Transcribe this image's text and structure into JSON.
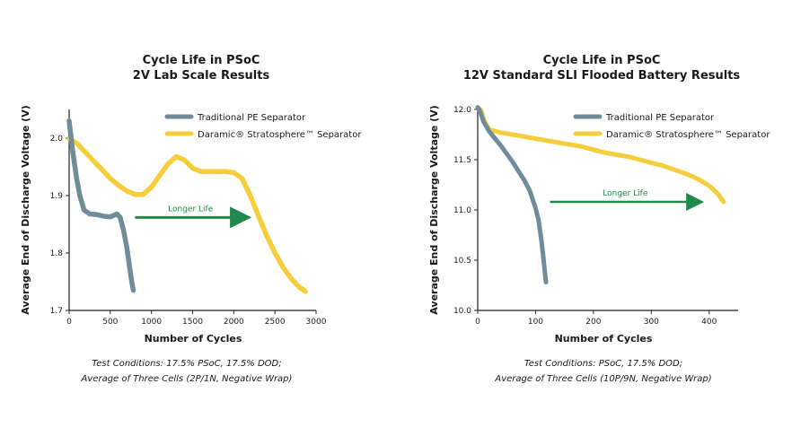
{
  "chart_data": [
    {
      "type": "line",
      "title": [
        "Cycle Life in PSoC",
        "2V Lab Scale Results"
      ],
      "xlabel": "Number of Cycles",
      "ylabel": "Average End of Discharge Voltage (V)",
      "xlim": [
        0,
        3000
      ],
      "ylim": [
        1.7,
        2.05
      ],
      "xticks": [
        0,
        500,
        1000,
        1500,
        2000,
        2500,
        3000
      ],
      "yticks": [
        1.7,
        1.8,
        1.9,
        2.0
      ],
      "ytick_labels": [
        "1.7",
        "1.8",
        "1.9",
        "2.0"
      ],
      "legend_position": "top-right",
      "series": [
        {
          "name": "Traditional PE Separator",
          "color": "#6f8c9b",
          "x": [
            0,
            40,
            90,
            130,
            180,
            250,
            330,
            420,
            500,
            580,
            620,
            660,
            700,
            730,
            760,
            780
          ],
          "y": [
            2.03,
            1.98,
            1.93,
            1.9,
            1.875,
            1.868,
            1.867,
            1.864,
            1.863,
            1.868,
            1.862,
            1.84,
            1.81,
            1.78,
            1.75,
            1.735
          ]
        },
        {
          "name": "Daramic® Stratosphere™ Separator",
          "color": "#f6cd3a",
          "x": [
            0,
            100,
            200,
            300,
            400,
            500,
            600,
            700,
            800,
            900,
            1000,
            1100,
            1200,
            1300,
            1400,
            1500,
            1600,
            1700,
            1800,
            1900,
            2000,
            2100,
            2200,
            2300,
            2400,
            2500,
            2600,
            2700,
            2800,
            2870
          ],
          "y": [
            2.0,
            1.99,
            1.975,
            1.96,
            1.945,
            1.93,
            1.918,
            1.908,
            1.902,
            1.902,
            1.915,
            1.935,
            1.955,
            1.968,
            1.962,
            1.948,
            1.942,
            1.942,
            1.942,
            1.942,
            1.94,
            1.93,
            1.9,
            1.865,
            1.83,
            1.8,
            1.775,
            1.755,
            1.74,
            1.733
          ]
        }
      ],
      "annotation": {
        "text": "Longer Life",
        "x_start": 800,
        "x_end": 2150,
        "y": 1.862,
        "color": "#1f8a4c"
      },
      "note": [
        "Test Conditions: 17.5% PSoC, 17.5% DOD;",
        "Average of Three Cells (2P/1N, Negative Wrap)"
      ]
    },
    {
      "type": "line",
      "title": [
        "Cycle Life in PSoC",
        "12V Standard SLI Flooded Battery Results"
      ],
      "xlabel": "Number of Cycles",
      "ylabel": "Average End of Discharge Voltage (V)",
      "xlim": [
        0,
        450
      ],
      "ylim": [
        10.0,
        12.0
      ],
      "xticks": [
        0,
        100,
        200,
        300,
        400
      ],
      "yticks": [
        10.0,
        10.5,
        11.0,
        11.5,
        12.0
      ],
      "ytick_labels": [
        "10.0",
        "10.5",
        "11.0",
        "11.5",
        "12.0"
      ],
      "legend_position": "top-right",
      "series": [
        {
          "name": "Traditional PE Separator",
          "color": "#6f8c9b",
          "x": [
            0,
            5,
            10,
            20,
            30,
            40,
            50,
            60,
            70,
            80,
            90,
            100,
            105,
            110,
            113,
            116,
            118
          ],
          "y": [
            12.02,
            11.97,
            11.88,
            11.78,
            11.71,
            11.64,
            11.56,
            11.48,
            11.39,
            11.3,
            11.19,
            11.02,
            10.9,
            10.7,
            10.55,
            10.38,
            10.28
          ]
        },
        {
          "name": "Daramic® Stratosphere™ Separator",
          "color": "#f6cd3a",
          "x": [
            0,
            5,
            12,
            20,
            40,
            60,
            80,
            100,
            120,
            140,
            160,
            180,
            200,
            220,
            240,
            260,
            280,
            300,
            320,
            340,
            360,
            380,
            400,
            415,
            425
          ],
          "y": [
            12.02,
            12.0,
            11.88,
            11.8,
            11.77,
            11.75,
            11.73,
            11.71,
            11.69,
            11.67,
            11.65,
            11.63,
            11.6,
            11.57,
            11.55,
            11.53,
            11.5,
            11.47,
            11.44,
            11.4,
            11.36,
            11.31,
            11.24,
            11.16,
            11.08
          ]
        }
      ],
      "annotation": {
        "text": "Longer Life",
        "x_start": 125,
        "x_end": 385,
        "y": 11.08,
        "color": "#1f8a4c"
      },
      "note": [
        "Test Conditions: PSoC, 17.5% DOD;",
        "Average of Three Cells (10P/9N, Negative Wrap)"
      ]
    }
  ]
}
